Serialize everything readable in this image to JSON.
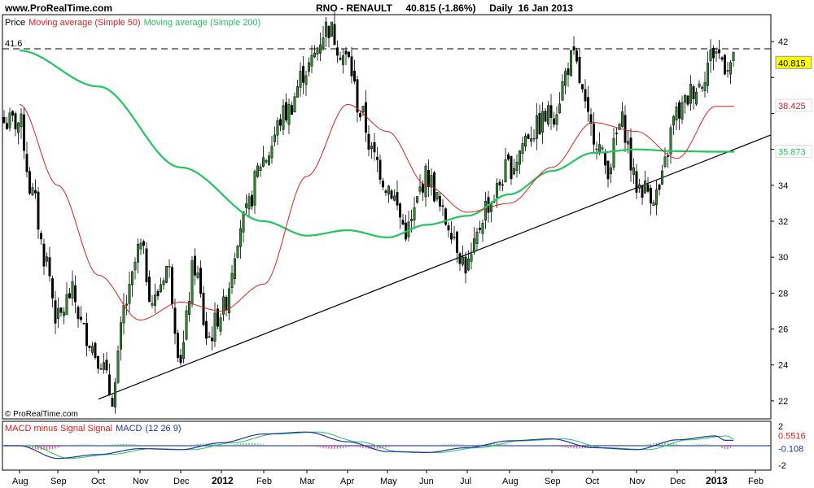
{
  "header": {
    "site": "www.ProRealTime.com",
    "symbol_line": "RNO - RENAULT     40.815 (-1.86%)     Daily  16 Jan 2013",
    "copyright": "© ProRealTime.com"
  },
  "colors": {
    "price_up": "#2e8b2e",
    "price_down": "#000000",
    "ma50": "#e02020",
    "ma200": "#22c55e",
    "last_price_badge": "#ffff00",
    "macd_line": "#2233aa",
    "signal_line": "#22c55e",
    "histogram": "#e0607a",
    "trendline": "#000000"
  },
  "chart_data": [
    {
      "type": "candlestick",
      "legend": [
        {
          "name": "Price",
          "color": "#000000"
        },
        {
          "name": "Moving average (Simple 50)",
          "color": "#e02020"
        },
        {
          "name": "Moving average (Simple 200)",
          "color": "#22c55e"
        }
      ],
      "ylim": [
        21,
        43.5
      ],
      "y_ticks": [
        22,
        24,
        26,
        28,
        30,
        32,
        34,
        36,
        38,
        40,
        42
      ],
      "y_tick_labels": [
        "22",
        "24",
        "26",
        "28",
        "30",
        "32",
        "34",
        "",
        "",
        "",
        "42"
      ],
      "x_labels": [
        "Aug",
        "Sep",
        "Oct",
        "Nov",
        "Dec",
        "2012",
        "Feb",
        "Mar",
        "Apr",
        "May",
        "Jun",
        "Jul",
        "Aug",
        "Sep",
        "Oct",
        "Nov",
        "Dec",
        "2013",
        "Feb"
      ],
      "bold_x_labels": [
        "2012",
        "2013"
      ],
      "resistance_line": {
        "value": 41.6,
        "label": "41.6",
        "style": "dashed"
      },
      "value_badges": [
        {
          "value": 40.815,
          "label": "40.815",
          "series": "Price"
        },
        {
          "value": 38.425,
          "label": "38.425",
          "series": "Moving average (Simple 50)"
        },
        {
          "value": 35.873,
          "label": "35.873",
          "series": "Moving average (Simple 200)"
        }
      ],
      "trendline": {
        "from": [
          "Oct 2011",
          22.1
        ],
        "to": [
          "Feb 2013",
          36.8
        ]
      },
      "price_path": [
        [
          "Aug 2011",
          37.5
        ],
        [
          "Aug 2011",
          33.5
        ],
        [
          "Aug 2011",
          30.0
        ],
        [
          "Sep 2011",
          26.5
        ],
        [
          "Sep 2011",
          28.0
        ],
        [
          "Sep 2011",
          25.8
        ],
        [
          "Oct 2011",
          24.5
        ],
        [
          "Oct 2011",
          22.3
        ],
        [
          "Oct 2011",
          27.5
        ],
        [
          "Nov 2011",
          30.5
        ],
        [
          "Nov 2011",
          27.5
        ],
        [
          "Nov 2011",
          29.5
        ],
        [
          "Dec 2011",
          24.5
        ],
        [
          "Dec 2011",
          29.5
        ],
        [
          "Dec 2011",
          25.5
        ],
        [
          "Jan 2012",
          27.0
        ],
        [
          "Jan 2012",
          32.0
        ],
        [
          "Feb 2012",
          35.5
        ],
        [
          "Feb 2012",
          38.0
        ],
        [
          "Mar 2012",
          40.5
        ],
        [
          "Mar 2012",
          42.8
        ],
        [
          "Apr 2012",
          41.0
        ],
        [
          "Apr 2012",
          38.0
        ],
        [
          "Apr 2012",
          35.5
        ],
        [
          "May 2012",
          34.0
        ],
        [
          "May 2012",
          31.5
        ],
        [
          "Jun 2012",
          34.5
        ],
        [
          "Jun 2012",
          32.0
        ],
        [
          "Jul 2012",
          29.5
        ],
        [
          "Jul 2012",
          33.0
        ],
        [
          "Aug 2012",
          35.0
        ],
        [
          "Aug 2012",
          37.0
        ],
        [
          "Sep 2012",
          38.0
        ],
        [
          "Sep 2012",
          41.0
        ],
        [
          "Oct 2012",
          37.0
        ],
        [
          "Oct 2012",
          35.0
        ],
        [
          "Oct 2012",
          37.5
        ],
        [
          "Nov 2012",
          34.0
        ],
        [
          "Nov 2012",
          33.5
        ],
        [
          "Dec 2012",
          38.0
        ],
        [
          "Dec 2012",
          39.5
        ],
        [
          "Jan 2013",
          41.5
        ],
        [
          "Jan 2013",
          40.815
        ]
      ],
      "ma50_path": [
        [
          "Aug 2011",
          38.5
        ],
        [
          "Sep 2011",
          34.0
        ],
        [
          "Oct 2011",
          29.0
        ],
        [
          "Nov 2011",
          26.5
        ],
        [
          "Dec 2011",
          27.5
        ],
        [
          "Jan 2012",
          27.0
        ],
        [
          "Feb 2012",
          28.5
        ],
        [
          "Mar 2012",
          34.5
        ],
        [
          "Apr 2012",
          38.5
        ],
        [
          "May 2012",
          37.0
        ],
        [
          "Jun 2012",
          34.0
        ],
        [
          "Jul 2012",
          32.5
        ],
        [
          "Aug 2012",
          33.0
        ],
        [
          "Sep 2012",
          35.0
        ],
        [
          "Oct 2012",
          37.5
        ],
        [
          "Nov 2012",
          37.0
        ],
        [
          "Dec 2012",
          35.5
        ],
        [
          "Jan 2013",
          38.4
        ]
      ],
      "ma200_path": [
        [
          "Aug 2011",
          41.5
        ],
        [
          "Oct 2011",
          39.5
        ],
        [
          "Dec 2011",
          35.0
        ],
        [
          "Feb 2012",
          32.0
        ],
        [
          "Mar 2012",
          31.2
        ],
        [
          "Apr 2012",
          31.5
        ],
        [
          "May 2012",
          31.1
        ],
        [
          "Jun 2012",
          31.8
        ],
        [
          "Jul 2012",
          32.3
        ],
        [
          "Aug 2012",
          33.5
        ],
        [
          "Sep 2012",
          34.8
        ],
        [
          "Oct 2012",
          35.8
        ],
        [
          "Nov 2012",
          36.0
        ],
        [
          "Dec 2012",
          35.9
        ],
        [
          "Jan 2013",
          35.87
        ]
      ]
    },
    {
      "type": "line",
      "legend": [
        {
          "name": "MACD minus Signal Signal",
          "color": "#e02020"
        },
        {
          "name": "MACD",
          "color": "#2233aa"
        },
        {
          "name": "(12 26 9)",
          "color": "#2233aa"
        }
      ],
      "ylim": [
        -2.5,
        2.5
      ],
      "y_tick_labels": [
        "2",
        "-2"
      ],
      "value_badges": [
        {
          "value": 0.5516,
          "label": "0.5516"
        },
        {
          "value": -0.108,
          "label": "-0.108"
        }
      ],
      "macd_path": [
        [
          "Aug 2011",
          0.0
        ],
        [
          "Sep 2011",
          -1.3
        ],
        [
          "Oct 2011",
          -0.9
        ],
        [
          "Nov 2011",
          -0.3
        ],
        [
          "Dec 2011",
          -0.4
        ],
        [
          "Jan 2012",
          0.3
        ],
        [
          "Feb 2012",
          1.2
        ],
        [
          "Mar 2012",
          1.4
        ],
        [
          "Apr 2012",
          0.4
        ],
        [
          "May 2012",
          -0.6
        ],
        [
          "Jun 2012",
          -0.7
        ],
        [
          "Jul 2012",
          -0.2
        ],
        [
          "Aug 2012",
          0.5
        ],
        [
          "Sep 2012",
          0.7
        ],
        [
          "Oct 2012",
          -0.2
        ],
        [
          "Nov 2012",
          -0.4
        ],
        [
          "Dec 2012",
          0.6
        ],
        [
          "Jan 2013",
          1.0
        ],
        [
          "Jan 2013",
          0.55
        ]
      ]
    }
  ]
}
